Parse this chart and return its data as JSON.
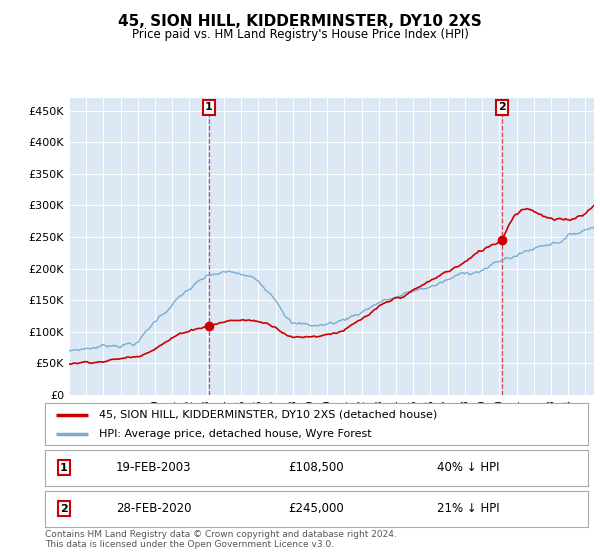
{
  "title": "45, SION HILL, KIDDERMINSTER, DY10 2XS",
  "subtitle": "Price paid vs. HM Land Registry's House Price Index (HPI)",
  "ylim": [
    0,
    470000
  ],
  "yticks": [
    0,
    50000,
    100000,
    150000,
    200000,
    250000,
    300000,
    350000,
    400000,
    450000
  ],
  "ytick_labels": [
    "£0",
    "£50K",
    "£100K",
    "£150K",
    "£200K",
    "£250K",
    "£300K",
    "£350K",
    "£400K",
    "£450K"
  ],
  "sale1_x": 2003.13,
  "sale1_y": 108500,
  "sale1_label": "19-FEB-2003",
  "sale1_price": "£108,500",
  "sale1_hpi": "40% ↓ HPI",
  "sale2_x": 2020.16,
  "sale2_y": 245000,
  "sale2_label": "28-FEB-2020",
  "sale2_price": "£245,000",
  "sale2_hpi": "21% ↓ HPI",
  "legend_label1": "45, SION HILL, KIDDERMINSTER, DY10 2XS (detached house)",
  "legend_label2": "HPI: Average price, detached house, Wyre Forest",
  "footer": "Contains HM Land Registry data © Crown copyright and database right 2024.\nThis data is licensed under the Open Government Licence v3.0.",
  "line_color_red": "#cc0000",
  "line_color_blue": "#7aadcf",
  "plot_bg_color": "#dce9f5",
  "x_min": 1995,
  "x_max": 2025.5
}
